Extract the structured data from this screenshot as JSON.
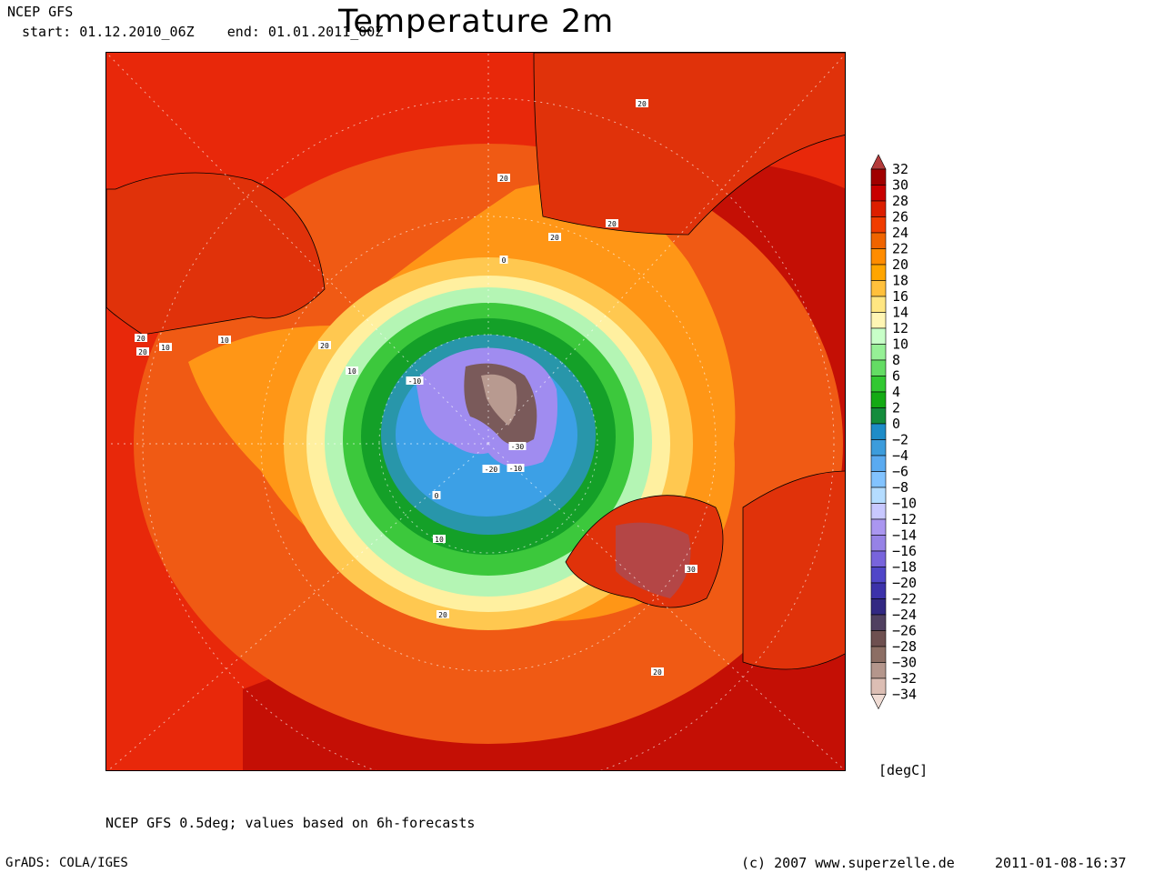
{
  "header": {
    "model": "NCEP GFS",
    "period": "start: 01.12.2010_06Z    end: 01.01.2011_00Z",
    "title": "Temperature 2m"
  },
  "footer": {
    "description": "NCEP GFS 0.5deg; values based on 6h-forecasts",
    "grads": "GrADS: COLA/IGES",
    "copyright": "(c) 2007 www.superzelle.de",
    "timestamp": "2011-01-08-16:37"
  },
  "colorbar": {
    "unit": "[degC]",
    "levels": [
      "32",
      "30",
      "28",
      "26",
      "24",
      "22",
      "20",
      "18",
      "16",
      "14",
      "12",
      "10",
      "8",
      "6",
      "4",
      "2",
      "0",
      "-2",
      "-4",
      "-6",
      "-8",
      "-10",
      "-12",
      "-14",
      "-16",
      "-18",
      "-20",
      "-22",
      "-24",
      "-26",
      "-28",
      "-30",
      "-32",
      "-34"
    ],
    "colors": [
      "#b43c3c",
      "#a00000",
      "#c80000",
      "#dc1e00",
      "#f03c00",
      "#f06400",
      "#ff8c00",
      "#ffa500",
      "#ffc03c",
      "#ffe682",
      "#fff5b4",
      "#c8ffc8",
      "#96f096",
      "#64dc64",
      "#32c832",
      "#14aa14",
      "#148c3c",
      "#1e8cc8",
      "#3c9cdc",
      "#5aaaf0",
      "#82c3ff",
      "#b4dcff",
      "#c8c8ff",
      "#aa96f0",
      "#9682e6",
      "#7864dc",
      "#5046c8",
      "#3c32aa",
      "#322882",
      "#504060",
      "#6e5050",
      "#8c6e64",
      "#b4968c",
      "#dcbeb4",
      "#f0dcd4"
    ]
  },
  "map": {
    "land_mask": "continents",
    "contour_labels": [
      "20",
      "20",
      "20",
      "20",
      "10",
      "20",
      "20",
      "10",
      "20",
      "10",
      "0",
      "-10",
      "-30",
      "-20",
      "-10",
      "0",
      "10",
      "20",
      "30",
      "20"
    ],
    "colors": {
      "ocean_warm": "#e8280a",
      "ocean_hot": "#c40f05",
      "band_22": "#f05a14",
      "band_20": "#ff9616",
      "band_16": "#ffc850",
      "band_12": "#fff0a0",
      "band_8": "#b4f5b4",
      "band_4": "#3cc83c",
      "band_0": "#14a028",
      "band_neg": "#2896aa",
      "band_neg6": "#3ca0e6",
      "band_neg14": "#a08cf0",
      "band_neg28": "#7a5a5a",
      "ice_core": "#b89a90",
      "land_hot": "#e0320a"
    }
  }
}
